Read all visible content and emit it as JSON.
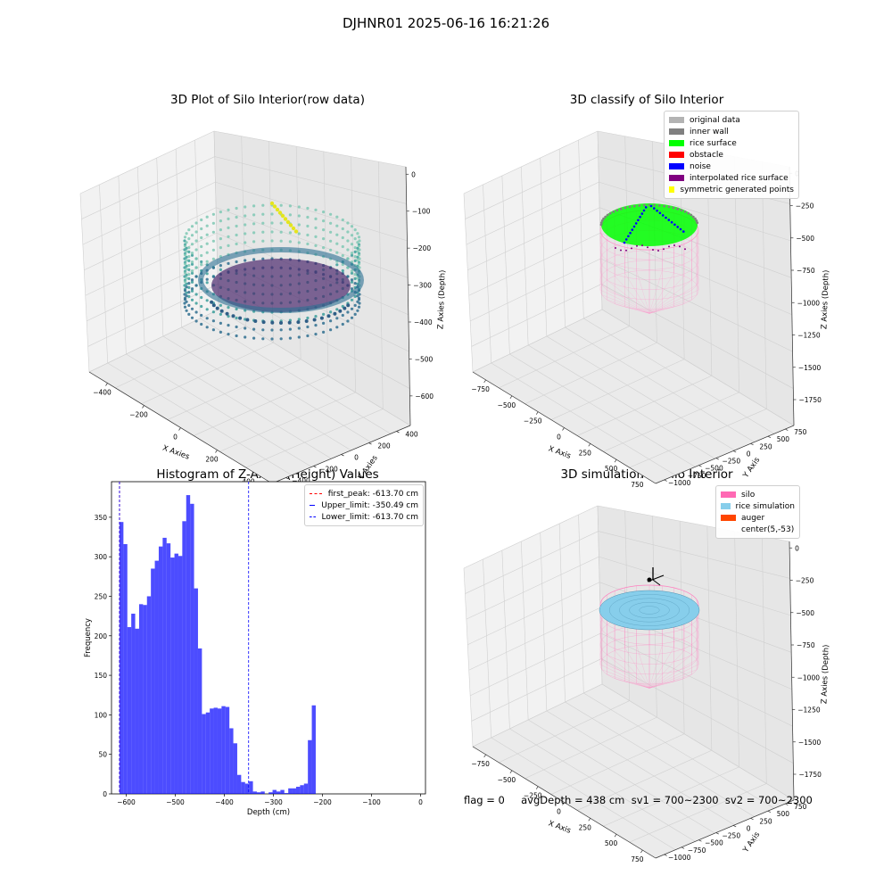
{
  "suptitle": "DJHNR01 2025-06-16 16:21:26",
  "panel1": {
    "title": "3D Plot of Silo Interior(row data)",
    "xlabel": "X Axies",
    "ylabel": "Y Axies",
    "zlabel": "Z Axies (Depth)",
    "xticks": [
      "−400",
      "−200",
      "0",
      "200",
      "400"
    ],
    "yticks": [
      "−400",
      "−200",
      "0",
      "200",
      "400"
    ],
    "zticks": [
      "0",
      "−100",
      "−200",
      "−300",
      "−400",
      "−500",
      "−600"
    ]
  },
  "panel2": {
    "title": "3D classify of Silo Interior",
    "xlabel": "X Axis",
    "ylabel": "Y Axis",
    "zlabel": "Z Axies (Depth)",
    "xticks": [
      "−750",
      "−500",
      "−250",
      "0",
      "250",
      "500",
      "750"
    ],
    "yticks": [
      "−1000",
      "−750",
      "−500",
      "−250",
      "0",
      "250",
      "500",
      "750"
    ],
    "zticks": [
      "0",
      "−250",
      "−500",
      "−750",
      "−1000",
      "−1250",
      "−1500",
      "−1750"
    ],
    "legend": [
      {
        "label": "original data",
        "color": "#b3b3b3"
      },
      {
        "label": "inner wall",
        "color": "#808080"
      },
      {
        "label": "rice surface",
        "color": "#00ff00"
      },
      {
        "label": "obstacle",
        "color": "#ff0000"
      },
      {
        "label": "noise",
        "color": "#0000ff"
      },
      {
        "label": "interpolated rice surface",
        "color": "#800080"
      },
      {
        "label": "symmetric generated points",
        "color": "#ffff00"
      }
    ]
  },
  "panel4": {
    "title": "3D simulation of Silo Interior",
    "xlabel": "X Axis",
    "ylabel": "Y Axis",
    "zlabel": "Z Axies (Depth)",
    "xticks": [
      "−750",
      "−500",
      "−250",
      "0",
      "250",
      "500",
      "750"
    ],
    "yticks": [
      "−1000",
      "−750",
      "−500",
      "−250",
      "0",
      "250",
      "500",
      "750"
    ],
    "zticks": [
      "0",
      "−250",
      "−500",
      "−750",
      "−1000",
      "−1250",
      "−1500",
      "−1750"
    ],
    "legend": [
      {
        "label": "silo",
        "color": "#ff69b4"
      },
      {
        "label": "rice simulation",
        "color": "#87ceeb"
      },
      {
        "label": "auger",
        "color": "#ff4500"
      },
      {
        "label": "center(5,-53)",
        "color": ""
      }
    ]
  },
  "status": {
    "text": "flag = 0     avgDepth = 438 cm  sv1 = 700~2300  sv2 = 700~2300"
  },
  "chart_data": [
    {
      "type": "scatter",
      "title": "3D Plot of Silo Interior(row data)",
      "xlabel": "X Axies",
      "ylabel": "Y Axies",
      "zlabel": "Z Axies (Depth)",
      "xlim": [
        -500,
        500
      ],
      "ylim": [
        -500,
        500
      ],
      "zlim": [
        -650,
        0
      ]
    },
    {
      "type": "scatter",
      "title": "3D classify of Silo Interior",
      "xlabel": "X Axis",
      "ylabel": "Y Axis",
      "zlabel": "Z Axies (Depth)",
      "xlim": [
        -900,
        900
      ],
      "ylim": [
        -1000,
        900
      ],
      "zlim": [
        -1750,
        0
      ],
      "legend": "upper right",
      "series": [
        {
          "name": "original data"
        },
        {
          "name": "inner wall"
        },
        {
          "name": "rice surface"
        },
        {
          "name": "obstacle"
        },
        {
          "name": "noise"
        },
        {
          "name": "interpolated rice surface"
        },
        {
          "name": "symmetric generated points"
        }
      ]
    },
    {
      "type": "bar",
      "title": "Histogram of Z-Axies (Height) Values",
      "xlabel": "Depth (cm)",
      "ylabel": "Frequency",
      "xlim": [
        -630,
        10
      ],
      "ylim": [
        0,
        395
      ],
      "xticks": [
        -600,
        -500,
        -400,
        -300,
        -200,
        -100,
        0
      ],
      "yticks": [
        0,
        50,
        100,
        150,
        200,
        250,
        300,
        350
      ],
      "bin_start": -613.7,
      "bin_width": 8,
      "color": "#0000ff",
      "values": [
        344,
        316,
        211,
        228,
        209,
        240,
        239,
        250,
        285,
        295,
        313,
        324,
        317,
        299,
        304,
        301,
        345,
        378,
        367,
        260,
        184,
        101,
        103,
        108,
        109,
        108,
        111,
        110,
        83,
        64,
        24,
        15,
        13,
        16,
        3,
        2,
        3,
        0,
        2,
        5,
        3,
        5,
        1,
        7,
        7,
        9,
        11,
        13,
        68,
        112
      ],
      "vlines": [
        {
          "label": "first_peak: -613.70 cm",
          "x": -613.7,
          "color": "#ff0000"
        },
        {
          "label": "Upper_limit: -350.49 cm",
          "x": -350.49,
          "color": "#0000ff"
        },
        {
          "label": "Lower_limit: -613.70 cm",
          "x": -613.7,
          "color": "#0000ff"
        }
      ],
      "legend": "upper right"
    },
    {
      "type": "scatter",
      "title": "3D simulation of Silo Interior",
      "xlabel": "X Axis",
      "ylabel": "Y Axis",
      "zlabel": "Z Axies (Depth)",
      "xlim": [
        -900,
        900
      ],
      "ylim": [
        -1000,
        900
      ],
      "zlim": [
        -1750,
        0
      ],
      "legend": "upper right",
      "series": [
        {
          "name": "silo"
        },
        {
          "name": "rice simulation"
        },
        {
          "name": "auger"
        },
        {
          "name": "center(5,-53)"
        }
      ]
    }
  ]
}
